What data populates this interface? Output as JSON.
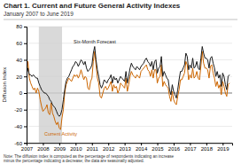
{
  "chart_data": {
    "type": "line",
    "title": "Chart 1. Current and Future General Activity Indexes",
    "subtitle": "January 2007 to June 2019",
    "ylabel": "Diffusion Index",
    "note": "Note: The diffusion index is computed as the percentage of respondents indicating an increase\nminus the percentage indicating a decrease; the data are seasonally adjusted.",
    "xlim": [
      2007.0,
      2019.58
    ],
    "xticks": [
      2007,
      2008,
      2009,
      2010,
      2011,
      2012,
      2013,
      2014,
      2015,
      2016,
      2017,
      2018,
      2019
    ],
    "ylim": [
      -60,
      80
    ],
    "yticks": [
      -60,
      -40,
      -20,
      0,
      20,
      40,
      60,
      80
    ],
    "grid": true,
    "shaded_range": [
      2007.75,
      2009.17
    ],
    "x": [
      2007.0,
      2007.083,
      2007.167,
      2007.25,
      2007.333,
      2007.417,
      2007.5,
      2007.583,
      2007.667,
      2007.75,
      2007.833,
      2007.917,
      2008.0,
      2008.083,
      2008.167,
      2008.25,
      2008.333,
      2008.417,
      2008.5,
      2008.583,
      2008.667,
      2008.75,
      2008.833,
      2008.917,
      2009.0,
      2009.083,
      2009.167,
      2009.25,
      2009.333,
      2009.417,
      2009.5,
      2009.583,
      2009.667,
      2009.75,
      2009.833,
      2009.917,
      2010.0,
      2010.083,
      2010.167,
      2010.25,
      2010.333,
      2010.417,
      2010.5,
      2010.583,
      2010.667,
      2010.75,
      2010.833,
      2010.917,
      2011.0,
      2011.083,
      2011.167,
      2011.25,
      2011.333,
      2011.417,
      2011.5,
      2011.583,
      2011.667,
      2011.75,
      2011.833,
      2011.917,
      2012.0,
      2012.083,
      2012.167,
      2012.25,
      2012.333,
      2012.417,
      2012.5,
      2012.583,
      2012.667,
      2012.75,
      2012.833,
      2012.917,
      2013.0,
      2013.083,
      2013.167,
      2013.25,
      2013.333,
      2013.417,
      2013.5,
      2013.583,
      2013.667,
      2013.75,
      2013.833,
      2013.917,
      2014.0,
      2014.083,
      2014.167,
      2014.25,
      2014.333,
      2014.417,
      2014.5,
      2014.583,
      2014.667,
      2014.75,
      2014.833,
      2014.917,
      2015.0,
      2015.083,
      2015.167,
      2015.25,
      2015.333,
      2015.417,
      2015.5,
      2015.583,
      2015.667,
      2015.75,
      2015.833,
      2015.917,
      2016.0,
      2016.083,
      2016.167,
      2016.25,
      2016.333,
      2016.417,
      2016.5,
      2016.583,
      2016.667,
      2016.75,
      2016.833,
      2016.917,
      2017.0,
      2017.083,
      2017.167,
      2017.25,
      2017.333,
      2017.417,
      2017.5,
      2017.583,
      2017.667,
      2017.75,
      2017.833,
      2017.917,
      2018.0,
      2018.083,
      2018.167,
      2018.25,
      2018.333,
      2018.417,
      2018.5,
      2018.583,
      2018.667,
      2018.75,
      2018.833,
      2018.917,
      2019.0,
      2019.083,
      2019.167,
      2019.25,
      2019.333,
      2019.417
    ],
    "series": [
      {
        "name": "Six-Month Forecast",
        "color": "#1a1a1a",
        "values": [
          22,
          30,
          22,
          22,
          20,
          22,
          20,
          18,
          18,
          12,
          8,
          4,
          2,
          0,
          0,
          -2,
          -4,
          -8,
          -10,
          -14,
          -16,
          -18,
          -22,
          -26,
          -28,
          -26,
          -20,
          -8,
          4,
          14,
          18,
          20,
          24,
          28,
          32,
          34,
          38,
          36,
          32,
          36,
          40,
          38,
          34,
          38,
          30,
          26,
          28,
          30,
          34,
          48,
          56,
          40,
          28,
          20,
          10,
          6,
          10,
          16,
          14,
          12,
          16,
          18,
          22,
          12,
          20,
          16,
          18,
          12,
          16,
          20,
          18,
          16,
          14,
          26,
          12,
          20,
          30,
          36,
          32,
          30,
          28,
          32,
          30,
          28,
          32,
          34,
          36,
          40,
          42,
          38,
          36,
          32,
          38,
          28,
          38,
          40,
          24,
          30,
          32,
          44,
          20,
          26,
          22,
          18,
          16,
          4,
          -2,
          10,
          2,
          -2,
          -6,
          4,
          16,
          26,
          26,
          30,
          34,
          48,
          44,
          28,
          34,
          30,
          42,
          30,
          32,
          38,
          30,
          28,
          42,
          56,
          48,
          42,
          42,
          40,
          30,
          42,
          44,
          36,
          30,
          20,
          26,
          18,
          22,
          8,
          24,
          20,
          10,
          4,
          20,
          22
        ]
      },
      {
        "name": "Current Activity",
        "color": "#cc6600",
        "values": [
          22,
          38,
          18,
          12,
          8,
          4,
          6,
          0,
          6,
          2,
          -8,
          -16,
          -22,
          -20,
          -18,
          -14,
          -24,
          -26,
          -12,
          -24,
          -28,
          -34,
          -38,
          -35,
          -42,
          -44,
          -30,
          -20,
          0,
          10,
          14,
          18,
          16,
          14,
          18,
          22,
          20,
          22,
          18,
          22,
          28,
          22,
          16,
          20,
          18,
          6,
          4,
          14,
          18,
          38,
          50,
          34,
          18,
          12,
          -4,
          -6,
          0,
          6,
          8,
          4,
          6,
          10,
          14,
          2,
          10,
          6,
          8,
          0,
          4,
          12,
          10,
          8,
          6,
          18,
          2,
          10,
          20,
          26,
          22,
          20,
          18,
          22,
          20,
          18,
          26,
          28,
          30,
          32,
          34,
          28,
          26,
          20,
          28,
          18,
          28,
          28,
          12,
          18,
          20,
          34,
          8,
          14,
          10,
          8,
          6,
          -4,
          -10,
          2,
          -8,
          -12,
          -14,
          -4,
          4,
          16,
          16,
          20,
          24,
          38,
          34,
          16,
          22,
          18,
          30,
          18,
          20,
          26,
          18,
          16,
          32,
          50,
          36,
          30,
          30,
          28,
          18,
          32,
          34,
          24,
          18,
          8,
          14,
          6,
          10,
          -2,
          14,
          8,
          0,
          -4,
          10,
          12
        ]
      }
    ]
  }
}
